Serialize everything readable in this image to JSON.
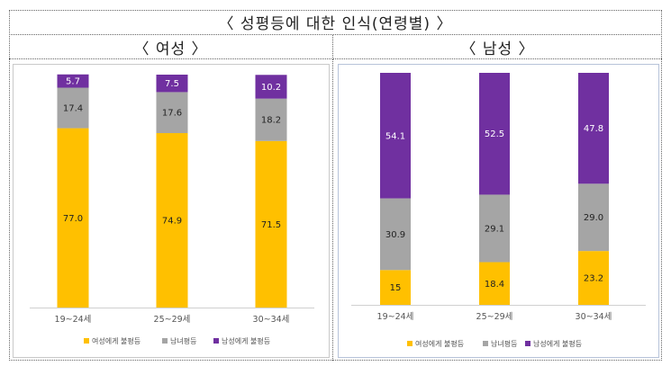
{
  "main_title": "〈 성평등에 대한 인식(연령별) 〉",
  "chart_data": [
    {
      "type": "bar",
      "stacked": true,
      "title": "〈 여성 〉",
      "categories": [
        "19~24세",
        "25~29세",
        "30~34세"
      ],
      "series": [
        {
          "name": "여성에게 불평등",
          "color": "#FFC000",
          "values": [
            77.0,
            74.9,
            71.5
          ],
          "labels": [
            "77.0",
            "74.9",
            "71.5"
          ]
        },
        {
          "name": "남녀평등",
          "color": "#A5A5A5",
          "values": [
            17.4,
            17.6,
            18.2
          ],
          "labels": [
            "17.4",
            "17.6",
            "18.2"
          ]
        },
        {
          "name": "남성에게 불평등",
          "color": "#7030A0",
          "values": [
            5.7,
            7.5,
            10.2
          ],
          "labels": [
            "5.7",
            "7.5",
            "10.2"
          ]
        }
      ],
      "ylim": [
        0,
        100
      ],
      "legend_position": "bottom",
      "grid": false
    },
    {
      "type": "bar",
      "stacked": true,
      "title": "〈 남성 〉",
      "categories": [
        "19~24세",
        "25~29세",
        "30~34세"
      ],
      "series": [
        {
          "name": "여성에게 불평등",
          "color": "#FFC000",
          "values": [
            15.0,
            18.4,
            23.2
          ],
          "labels": [
            "15",
            "18.4",
            "23.2"
          ]
        },
        {
          "name": "남녀평등",
          "color": "#A5A5A5",
          "values": [
            30.9,
            29.1,
            29.0
          ],
          "labels": [
            "30.9",
            "29.1",
            "29.0"
          ]
        },
        {
          "name": "남성에게 불평등",
          "color": "#7030A0",
          "values": [
            54.1,
            52.5,
            47.8
          ],
          "labels": [
            "54.1",
            "52.5",
            "47.8"
          ]
        }
      ],
      "ylim": [
        0,
        100
      ],
      "legend_position": "bottom",
      "grid": false
    }
  ]
}
